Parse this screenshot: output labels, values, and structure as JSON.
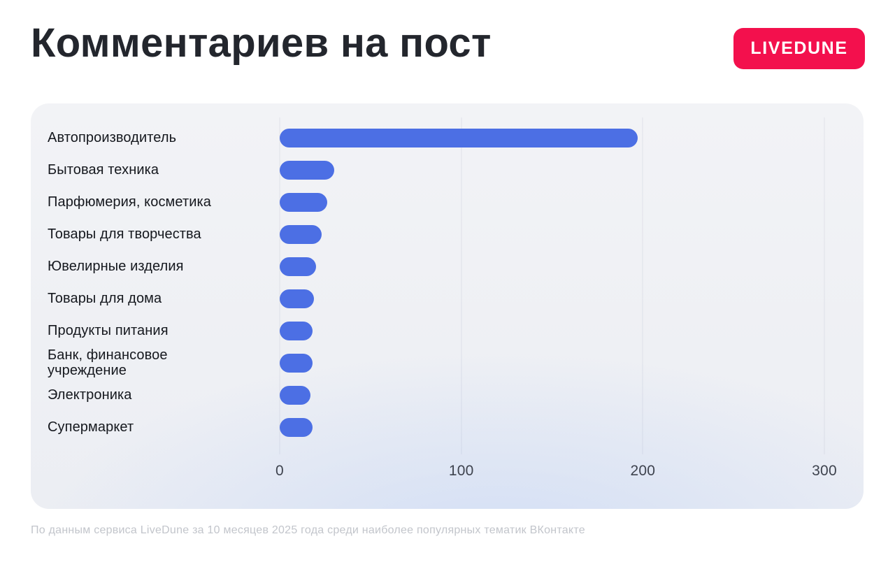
{
  "header": {
    "title": "Комментариев на пост",
    "logo": {
      "label": "LIVEDUNE",
      "background": "#F3104D",
      "text_color": "#FFFFFF"
    }
  },
  "chart_data": {
    "type": "bar",
    "orientation": "horizontal",
    "title": "Комментариев на пост",
    "categories": [
      "Автопроизводитель",
      "Бытовая техника",
      "Парфюмерия, косметика",
      "Товары для творчества",
      "Ювелирные изделия",
      "Товары для дома",
      "Продукты питания",
      "Банк, финансовое учреждение",
      "Электроника",
      "Супермаркет"
    ],
    "values": [
      197,
      30,
      26,
      23,
      20,
      19,
      18,
      18,
      17,
      18
    ],
    "xlim": [
      0,
      300
    ],
    "x_ticks": [
      0,
      100,
      200,
      300
    ],
    "bar_color": "#4C6FE4",
    "grid": true,
    "legend": false,
    "xlabel": "",
    "ylabel": ""
  },
  "footer": {
    "note": "По данным сервиса LiveDune за 10 месяцев 2025 года среди наиболее популярных тематик ВКонтакте"
  }
}
